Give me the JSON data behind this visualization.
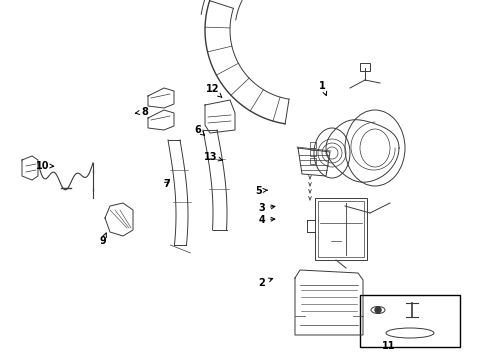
{
  "background_color": "#ffffff",
  "line_color": "#3a3a3a",
  "callout_color": "#000000",
  "fig_width": 4.89,
  "fig_height": 3.6,
  "dpi": 100,
  "callouts": {
    "1": [
      0.64,
      0.79,
      0.648,
      0.755
    ],
    "2": [
      0.535,
      0.2,
      0.56,
      0.22
    ],
    "3": [
      0.535,
      0.43,
      0.565,
      0.448
    ],
    "4": [
      0.535,
      0.4,
      0.565,
      0.408
    ],
    "5": [
      0.51,
      0.51,
      0.53,
      0.53
    ],
    "6": [
      0.38,
      0.7,
      0.395,
      0.675
    ],
    "7": [
      0.33,
      0.39,
      0.345,
      0.418
    ],
    "8": [
      0.285,
      0.74,
      0.265,
      0.75
    ],
    "9": [
      0.205,
      0.29,
      0.21,
      0.318
    ],
    "10": [
      0.085,
      0.565,
      0.11,
      0.55
    ],
    "11": [
      0.795,
      0.055,
      0.0,
      0.0
    ],
    "12": [
      0.435,
      0.82,
      0.45,
      0.8
    ],
    "13": [
      0.43,
      0.66,
      0.455,
      0.64
    ]
  }
}
